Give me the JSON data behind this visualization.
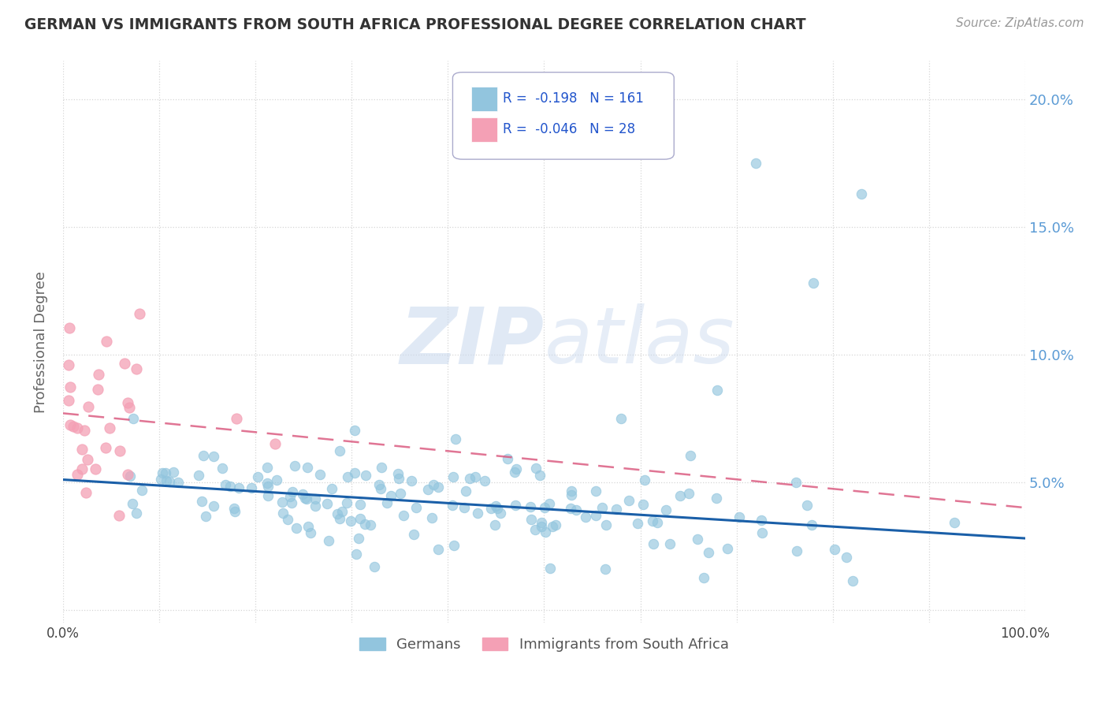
{
  "title": "GERMAN VS IMMIGRANTS FROM SOUTH AFRICA PROFESSIONAL DEGREE CORRELATION CHART",
  "source": "Source: ZipAtlas.com",
  "ylabel": "Professional Degree",
  "xlim": [
    0.0,
    1.0
  ],
  "ylim": [
    -0.005,
    0.215
  ],
  "yticks": [
    0.0,
    0.05,
    0.1,
    0.15,
    0.2
  ],
  "ytick_labels": [
    "",
    "5.0%",
    "10.0%",
    "15.0%",
    "20.0%"
  ],
  "xticks": [
    0.0,
    0.1,
    0.2,
    0.3,
    0.4,
    0.5,
    0.6,
    0.7,
    0.8,
    0.9,
    1.0
  ],
  "xtick_labels": [
    "0.0%",
    "",
    "",
    "",
    "",
    "",
    "",
    "",
    "",
    "",
    "100.0%"
  ],
  "german_color": "#92c5de",
  "immigrant_color": "#f4a0b5",
  "german_line_color": "#1a5fa8",
  "immigrant_line_color": "#d9537a",
  "watermark_zip": "ZIP",
  "watermark_atlas": "atlas",
  "legend_R_german": "-0.198",
  "legend_N_german": "161",
  "legend_R_immigrant": "-0.046",
  "legend_N_immigrant": "28",
  "german_line_x0": 0.0,
  "german_line_y0": 0.051,
  "german_line_x1": 1.0,
  "german_line_y1": 0.028,
  "immigrant_line_x0": 0.0,
  "immigrant_line_y0": 0.077,
  "immigrant_line_x1": 1.0,
  "immigrant_line_y1": 0.04
}
